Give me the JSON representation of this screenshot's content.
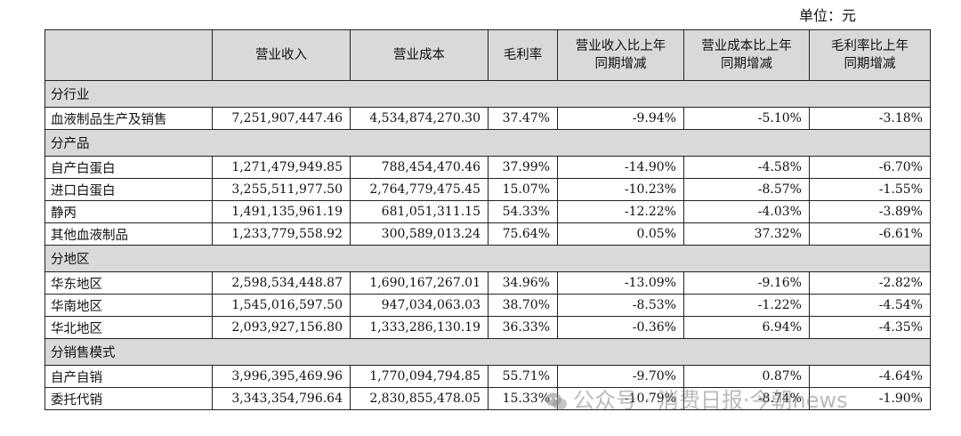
{
  "unit_label": "单位：元",
  "columns": [
    "",
    "营业收入",
    "营业成本",
    "毛利率",
    "营业收入比上年\n同期增减",
    "营业成本比上年\n同期增减",
    "毛利率比上年\n同期增减"
  ],
  "sections": [
    {
      "title": "分行业",
      "rows": [
        {
          "name": "血液制品生产及销售",
          "revenue": "7,251,907,447.46",
          "cost": "4,534,874,270.30",
          "margin": "37.47%",
          "rev_chg": "-9.94%",
          "cost_chg": "-5.10%",
          "margin_chg": "-3.18%"
        }
      ]
    },
    {
      "title": "分产品",
      "rows": [
        {
          "name": "自产白蛋白",
          "revenue": "1,271,479,949.85",
          "cost": "788,454,470.46",
          "margin": "37.99%",
          "rev_chg": "-14.90%",
          "cost_chg": "-4.58%",
          "margin_chg": "-6.70%"
        },
        {
          "name": "进口白蛋白",
          "revenue": "3,255,511,977.50",
          "cost": "2,764,779,475.45",
          "margin": "15.07%",
          "rev_chg": "-10.23%",
          "cost_chg": "-8.57%",
          "margin_chg": "-1.55%"
        },
        {
          "name": "静丙",
          "revenue": "1,491,135,961.19",
          "cost": "681,051,311.15",
          "margin": "54.33%",
          "rev_chg": "-12.22%",
          "cost_chg": "-4.03%",
          "margin_chg": "-3.89%"
        },
        {
          "name": "其他血液制品",
          "revenue": "1,233,779,558.92",
          "cost": "300,589,013.24",
          "margin": "75.64%",
          "rev_chg": "0.05%",
          "cost_chg": "37.32%",
          "margin_chg": "-6.61%"
        }
      ]
    },
    {
      "title": "分地区",
      "rows": [
        {
          "name": "华东地区",
          "revenue": "2,598,534,448.87",
          "cost": "1,690,167,267.01",
          "margin": "34.96%",
          "rev_chg": "-13.09%",
          "cost_chg": "-9.16%",
          "margin_chg": "-2.82%"
        },
        {
          "name": "华南地区",
          "revenue": "1,545,016,597.50",
          "cost": "947,034,063.03",
          "margin": "38.70%",
          "rev_chg": "-8.53%",
          "cost_chg": "-1.22%",
          "margin_chg": "-4.54%"
        },
        {
          "name": "华北地区",
          "revenue": "2,093,927,156.80",
          "cost": "1,333,286,130.19",
          "margin": "36.33%",
          "rev_chg": "-0.36%",
          "cost_chg": "6.94%",
          "margin_chg": "-4.35%"
        }
      ]
    },
    {
      "title": "分销售模式",
      "rows": [
        {
          "name": "自产自销",
          "revenue": "3,996,395,469.96",
          "cost": "1,770,094,794.85",
          "margin": "55.71%",
          "rev_chg": "-9.70%",
          "cost_chg": "0.87%",
          "margin_chg": "-4.64%"
        },
        {
          "name": "委托代销",
          "revenue": "3,343,354,796.64",
          "cost": "2,830,855,478.05",
          "margin": "15.33%",
          "rev_chg": "-10.79%",
          "cost_chg": "-8.74%",
          "margin_chg": "-1.90%"
        }
      ]
    }
  ],
  "watermark": "公众号 · 消费日报·今朝news"
}
